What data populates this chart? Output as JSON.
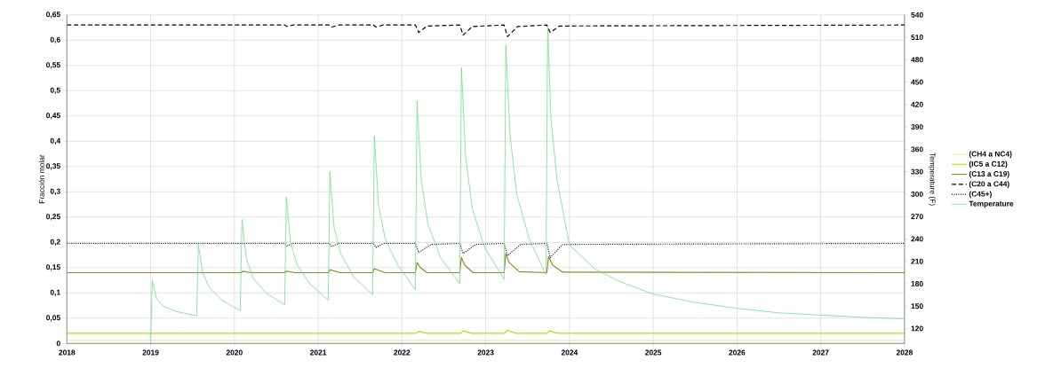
{
  "chart_data": {
    "type": "line",
    "ylabel": "Fracción molar",
    "y2label": "Temperature (F)",
    "xlim": [
      2018,
      2028
    ],
    "xticks": [
      2018,
      2019,
      2020,
      2021,
      2022,
      2023,
      2024,
      2025,
      2026,
      2027,
      2028
    ],
    "ylim": [
      0,
      0.65
    ],
    "yticks": [
      0,
      {
        "value": 0.05,
        "label": "0,05"
      },
      {
        "value": 0.1,
        "label": "0,1"
      },
      {
        "value": 0.15,
        "label": "0,15"
      },
      {
        "value": 0.2,
        "label": "0,2"
      },
      {
        "value": 0.25,
        "label": "0,25"
      },
      {
        "value": 0.3,
        "label": "0,3"
      },
      {
        "value": 0.35,
        "label": "0,35"
      },
      {
        "value": 0.4,
        "label": "0,4"
      },
      {
        "value": 0.45,
        "label": "0,45"
      },
      {
        "value": 0.5,
        "label": "0,5"
      },
      {
        "value": 0.55,
        "label": "0,55"
      },
      {
        "value": 0.6,
        "label": "0,6"
      },
      {
        "value": 0.65,
        "label": "0,65"
      }
    ],
    "y2lim": [
      100,
      540
    ],
    "y2ticks": [
      120,
      150,
      180,
      210,
      240,
      270,
      300,
      330,
      360,
      390,
      420,
      450,
      480,
      510,
      540
    ],
    "grid": true,
    "legend": "right",
    "marker": "none",
    "series": [
      {
        "name": "(CH4 a NC4)",
        "color": "#e2f0a6",
        "line_style": "solid",
        "x": [
          2018,
          2028
        ],
        "values": [
          0.006,
          0.006
        ]
      },
      {
        "name": "(IC5 a C12)",
        "color": "#b8d81a",
        "line_style": "solid",
        "x": [
          2018,
          2022.17,
          2022.2,
          2022.3,
          2022.7,
          2022.73,
          2022.83,
          2023.23,
          2023.26,
          2023.36,
          2023.73,
          2023.76,
          2023.86,
          2028
        ],
        "values": [
          0.02,
          0.02,
          0.024,
          0.02,
          0.02,
          0.025,
          0.02,
          0.02,
          0.026,
          0.02,
          0.02,
          0.025,
          0.02,
          0.02
        ]
      },
      {
        "name": "(C13 a C19)",
        "color": "#8a8c2e",
        "line_style": "solid",
        "x": [
          2018,
          2020.08,
          2020.1,
          2020.2,
          2020.6,
          2020.62,
          2020.72,
          2021.12,
          2021.14,
          2021.26,
          2021.65,
          2021.67,
          2021.8,
          2022.16,
          2022.18,
          2022.22,
          2022.3,
          2022.69,
          2022.71,
          2022.75,
          2022.85,
          2023.22,
          2023.24,
          2023.28,
          2023.4,
          2023.73,
          2023.75,
          2023.8,
          2023.92,
          2028
        ],
        "values": [
          0.14,
          0.14,
          0.143,
          0.14,
          0.14,
          0.143,
          0.14,
          0.14,
          0.146,
          0.14,
          0.14,
          0.148,
          0.14,
          0.14,
          0.16,
          0.15,
          0.14,
          0.14,
          0.17,
          0.155,
          0.14,
          0.14,
          0.178,
          0.16,
          0.142,
          0.14,
          0.172,
          0.155,
          0.141,
          0.14
        ]
      },
      {
        "name": "(C20 a C44)",
        "color": "#000000",
        "line_style": "dashed",
        "x": [
          2018,
          2020.6,
          2020.63,
          2020.7,
          2021.13,
          2021.16,
          2021.25,
          2021.66,
          2021.69,
          2021.78,
          2022.16,
          2022.2,
          2022.3,
          2022.69,
          2022.73,
          2022.84,
          2023.22,
          2023.26,
          2023.38,
          2023.73,
          2023.77,
          2023.88,
          2028
        ],
        "values": [
          0.63,
          0.63,
          0.627,
          0.63,
          0.63,
          0.626,
          0.63,
          0.63,
          0.626,
          0.63,
          0.63,
          0.615,
          0.628,
          0.63,
          0.61,
          0.627,
          0.63,
          0.607,
          0.627,
          0.63,
          0.615,
          0.628,
          0.63
        ]
      },
      {
        "name": "(C45+)",
        "color": "#000000",
        "line_style": "dotted",
        "x": [
          2018,
          2020.6,
          2020.63,
          2020.7,
          2021.13,
          2021.16,
          2021.25,
          2021.66,
          2021.69,
          2021.78,
          2022.16,
          2022.2,
          2022.35,
          2022.69,
          2022.73,
          2022.88,
          2023.22,
          2023.26,
          2023.42,
          2023.73,
          2023.77,
          2023.92,
          2028
        ],
        "values": [
          0.198,
          0.198,
          0.193,
          0.198,
          0.198,
          0.192,
          0.198,
          0.198,
          0.19,
          0.198,
          0.198,
          0.18,
          0.196,
          0.198,
          0.178,
          0.196,
          0.198,
          0.174,
          0.196,
          0.198,
          0.17,
          0.196,
          0.198
        ]
      },
      {
        "name": "Temperature",
        "color": "#6fdc88",
        "line_style": "solid",
        "axis": "y2",
        "x": [
          2019.0,
          2019.02,
          2019.07,
          2019.15,
          2019.3,
          2019.55,
          2019.57,
          2019.62,
          2019.7,
          2019.85,
          2020.07,
          2020.09,
          2020.14,
          2020.22,
          2020.37,
          2020.6,
          2020.62,
          2020.67,
          2020.75,
          2020.9,
          2021.12,
          2021.14,
          2021.19,
          2021.27,
          2021.42,
          2021.65,
          2021.67,
          2021.72,
          2021.8,
          2021.95,
          2022.16,
          2022.18,
          2022.23,
          2022.31,
          2022.46,
          2022.69,
          2022.71,
          2022.76,
          2022.84,
          2022.99,
          2023.22,
          2023.24,
          2023.29,
          2023.37,
          2023.52,
          2023.72,
          2023.74,
          2023.78,
          2023.85,
          2024.0,
          2024.3,
          2024.6,
          2025.0,
          2025.5,
          2026.0,
          2026.5,
          2027.0,
          2027.5,
          2028
        ],
        "values": [
          100,
          185,
          160,
          150,
          143,
          137,
          232,
          195,
          175,
          158,
          144,
          266,
          215,
          188,
          168,
          152,
          296,
          235,
          205,
          180,
          158,
          330,
          255,
          220,
          190,
          165,
          378,
          285,
          240,
          205,
          172,
          425,
          320,
          260,
          215,
          180,
          469,
          350,
          280,
          228,
          186,
          499,
          380,
          300,
          240,
          192,
          523,
          400,
          320,
          232,
          200,
          183,
          166,
          155,
          147,
          141,
          138,
          135,
          133
        ]
      }
    ]
  }
}
